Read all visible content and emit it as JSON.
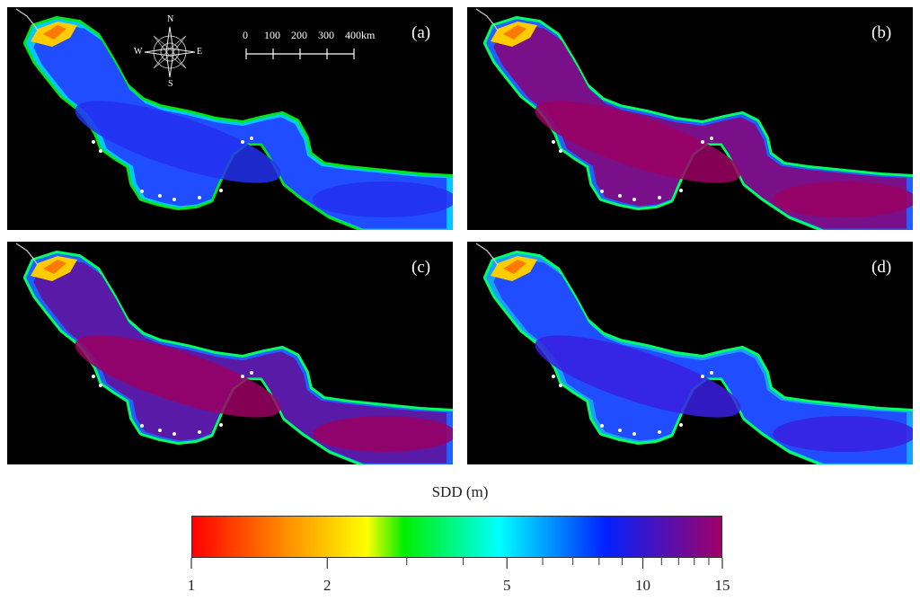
{
  "panels": [
    {
      "label": "(a)",
      "variant": "low-clarity"
    },
    {
      "label": "(b)",
      "variant": "high-clarity"
    },
    {
      "label": "(c)",
      "variant": "high-center"
    },
    {
      "label": "(d)",
      "variant": "medium-clarity"
    }
  ],
  "compass": {
    "north": "N",
    "south": "S",
    "east": "E",
    "west": "W",
    "icon": "compass-rose-icon"
  },
  "scale_bar": {
    "ticks": [
      "0",
      "100",
      "200",
      "300",
      "400"
    ],
    "unit": "km"
  },
  "legend": {
    "title": "SDD (m)",
    "min": 1,
    "max": 15,
    "scale": "log",
    "tick_labels": [
      "1",
      "2",
      "5",
      "10",
      "15"
    ],
    "labelled_ticks": [
      1,
      2,
      5,
      10,
      15
    ],
    "minor_ticks": [
      3,
      4,
      6,
      7,
      8,
      9,
      11,
      12,
      13,
      14
    ],
    "colors": [
      "#ff0000",
      "#ff8800",
      "#ffff00",
      "#00ee00",
      "#00ffff",
      "#0022ff",
      "#a00068"
    ]
  }
}
